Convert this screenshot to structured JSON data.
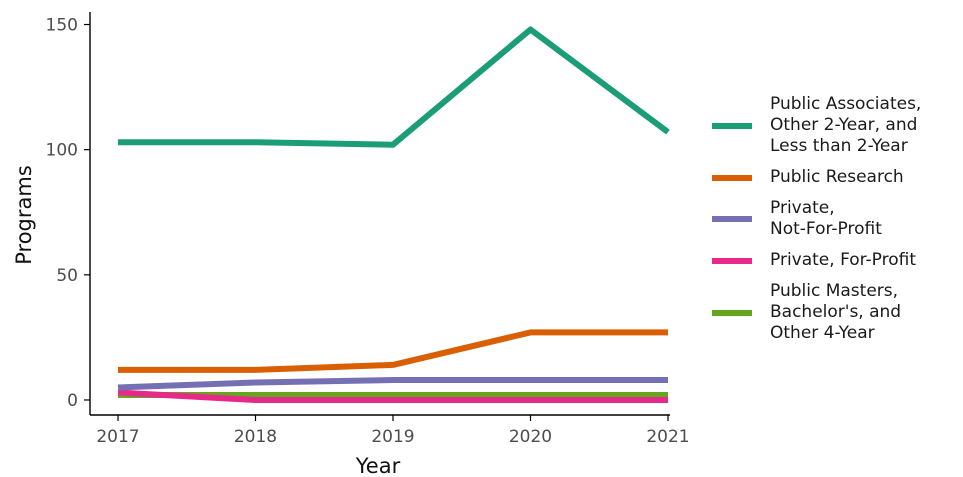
{
  "chart_data": {
    "type": "line",
    "title": "",
    "xlabel": "Year",
    "ylabel": "Programs",
    "x": [
      2017,
      2018,
      2019,
      2020,
      2021
    ],
    "x_ticks": [
      "2017",
      "2018",
      "2019",
      "2020",
      "2021"
    ],
    "y_ticks": [
      "0",
      "50",
      "100",
      "150"
    ],
    "xlim": [
      2017,
      2021
    ],
    "ylim": [
      -6,
      155
    ],
    "grid": false,
    "legend_position": "right",
    "series": [
      {
        "name": "Public Associates,\nOther 2-Year, and\nLess than 2-Year",
        "color": "#1b9e77",
        "values": [
          103,
          103,
          102,
          148,
          107
        ]
      },
      {
        "name": "Public Research",
        "color": "#d95f02",
        "values": [
          12,
          12,
          14,
          27,
          27
        ]
      },
      {
        "name": "Private,\nNot-For-Profit",
        "color": "#7570b3",
        "values": [
          5,
          7,
          8,
          8,
          8
        ]
      },
      {
        "name": "Private, For-Profit",
        "color": "#e7298a",
        "values": [
          3,
          0,
          0,
          0,
          0
        ]
      },
      {
        "name": "Public Masters,\nBachelor's, and\nOther 4-Year",
        "color": "#66a61e",
        "values": [
          2,
          2,
          2,
          2,
          2
        ]
      }
    ]
  }
}
